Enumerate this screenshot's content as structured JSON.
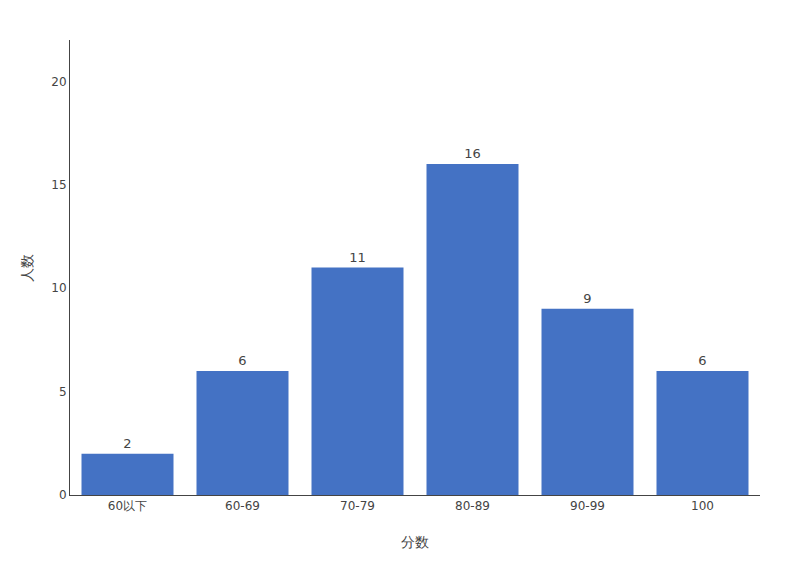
{
  "chart_data": {
    "type": "bar",
    "categories": [
      "60以下",
      "60-69",
      "70-79",
      "80-89",
      "90-99",
      "100"
    ],
    "values": [
      2,
      6,
      11,
      16,
      9,
      6
    ],
    "color": "#4472C4",
    "xlabel": "分数",
    "ylabel": "人数",
    "ylim": [
      0,
      22
    ],
    "yticks": [
      0,
      5,
      10,
      15,
      20
    ],
    "data_labels": true,
    "grid": false
  }
}
